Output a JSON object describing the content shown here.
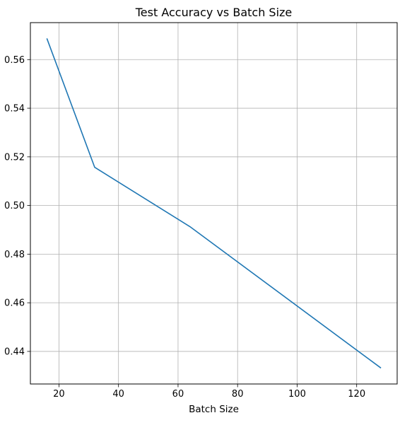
{
  "chart_data": {
    "type": "line",
    "title": "Test Accuracy vs Batch Size",
    "xlabel": "Batch Size",
    "ylabel": "",
    "grid": true,
    "xlim": [
      10.4,
      133.6
    ],
    "ylim": [
      0.4266,
      0.5752
    ],
    "xticks": [
      20,
      40,
      60,
      80,
      100,
      120
    ],
    "yticks": [
      0.44,
      0.46,
      0.48,
      0.5,
      0.52,
      0.54,
      0.56
    ],
    "series": [
      {
        "color": "#1f77b4",
        "x": [
          16,
          32,
          64,
          128
        ],
        "y": [
          0.5685,
          0.5157,
          0.4913,
          0.4333
        ]
      }
    ]
  }
}
